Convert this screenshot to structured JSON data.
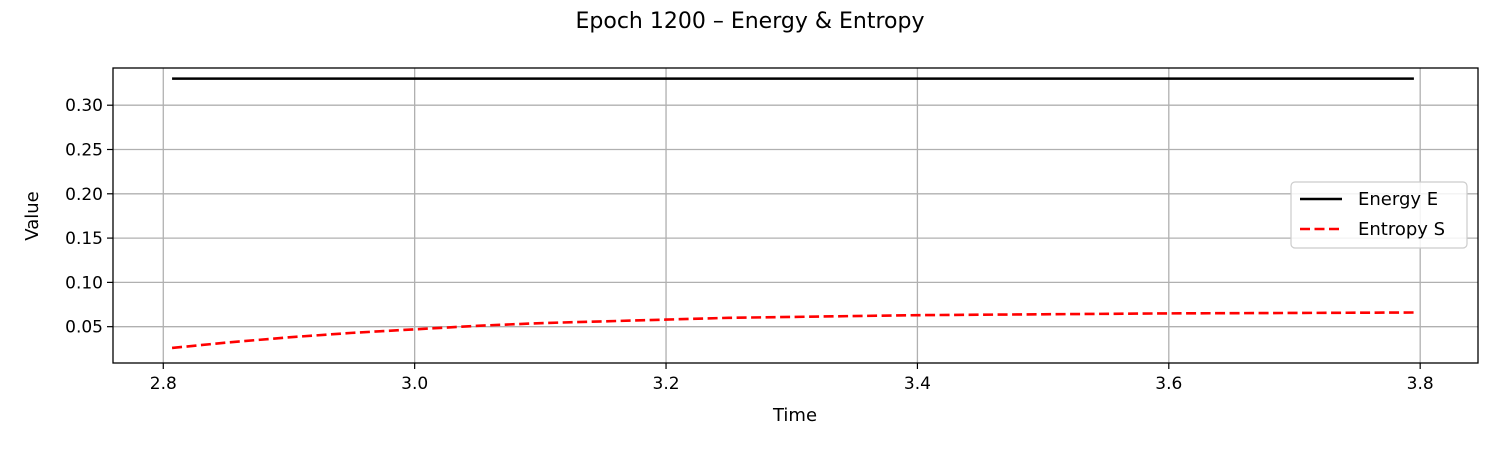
{
  "chart_data": {
    "type": "line",
    "title": "Epoch 1200 – Energy & Entropy",
    "xlabel": "Time",
    "ylabel": "Value",
    "xlim": [
      2.76,
      3.846
    ],
    "ylim": [
      0.009,
      0.342
    ],
    "xticks": [
      2.8,
      3.0,
      3.2,
      3.4,
      3.6,
      3.8
    ],
    "xtick_labels": [
      "2.8",
      "3.0",
      "3.2",
      "3.4",
      "3.6",
      "3.8"
    ],
    "yticks": [
      0.05,
      0.1,
      0.15,
      0.2,
      0.25,
      0.3
    ],
    "ytick_labels": [
      "0.05",
      "0.10",
      "0.15",
      "0.20",
      "0.25",
      "0.30"
    ],
    "grid": true,
    "legend_position": "center-right",
    "series": [
      {
        "name": "Energy E",
        "color": "#000000",
        "style": "solid",
        "x": [
          2.807,
          2.9,
          3.0,
          3.1,
          3.2,
          3.3,
          3.4,
          3.5,
          3.6,
          3.7,
          3.795
        ],
        "y": [
          0.33,
          0.33,
          0.33,
          0.33,
          0.33,
          0.33,
          0.33,
          0.33,
          0.33,
          0.33,
          0.33
        ]
      },
      {
        "name": "Entropy S",
        "color": "#ff0000",
        "style": "dashed",
        "x": [
          2.807,
          2.85,
          2.9,
          2.95,
          3.0,
          3.05,
          3.1,
          3.15,
          3.2,
          3.25,
          3.3,
          3.4,
          3.5,
          3.6,
          3.7,
          3.795
        ],
        "y": [
          0.026,
          0.032,
          0.038,
          0.043,
          0.047,
          0.051,
          0.054,
          0.056,
          0.058,
          0.06,
          0.061,
          0.063,
          0.064,
          0.065,
          0.0655,
          0.066
        ]
      }
    ]
  }
}
